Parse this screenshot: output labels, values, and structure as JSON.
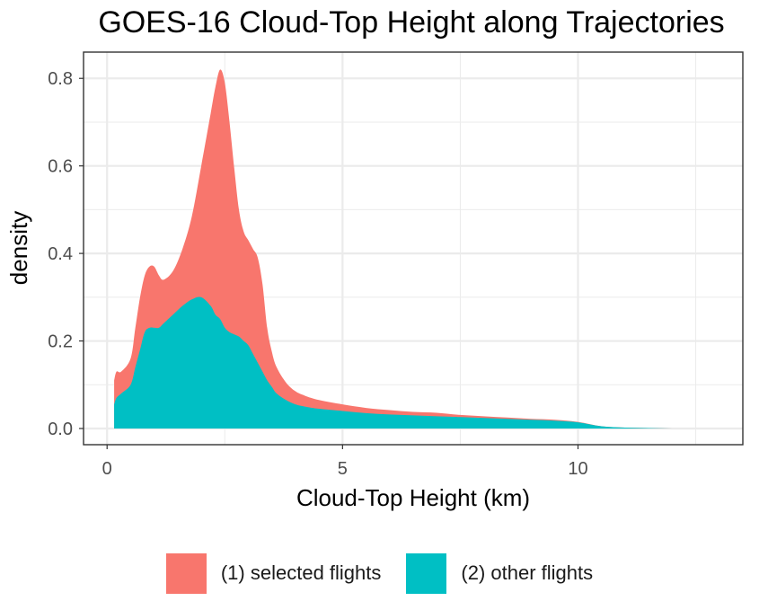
{
  "chart_data": {
    "type": "area",
    "title": "GOES-16 Cloud-Top Height along Trajectories",
    "xlabel": "Cloud-Top Height (km)",
    "ylabel": "density",
    "xlim": [
      -0.5,
      13.5
    ],
    "ylim": [
      -0.037,
      0.86
    ],
    "x_ticks": [
      0,
      5,
      10
    ],
    "x_tick_labels": [
      "0",
      "5",
      "10"
    ],
    "y_ticks": [
      0.0,
      0.2,
      0.4,
      0.6,
      0.8
    ],
    "y_tick_labels": [
      "0.0",
      "0.2",
      "0.4",
      "0.6",
      "0.8"
    ],
    "grid": true,
    "stacked": true,
    "legend_position": "bottom",
    "series": [
      {
        "name": "(1) selected flights",
        "color": "#F8766D",
        "x": [
          0.15,
          0.2,
          0.3,
          0.5,
          0.6,
          0.7,
          0.8,
          0.9,
          1.0,
          1.1,
          1.2,
          1.4,
          1.6,
          1.8,
          2.0,
          2.2,
          2.3,
          2.4,
          2.5,
          2.6,
          2.7,
          2.8,
          2.9,
          3.0,
          3.1,
          3.2,
          3.3,
          3.4,
          3.5,
          3.6,
          3.8,
          4.0,
          4.2,
          4.5,
          5.0,
          5.5,
          6.0,
          6.5,
          7.0,
          7.5,
          8.0,
          8.5,
          9.0,
          9.5,
          10.0,
          10.5,
          11.0,
          11.5,
          12.0,
          12.5
        ],
        "values": [
          0.055,
          0.06,
          0.05,
          0.06,
          0.09,
          0.12,
          0.13,
          0.14,
          0.14,
          0.12,
          0.1,
          0.1,
          0.13,
          0.19,
          0.3,
          0.44,
          0.52,
          0.57,
          0.56,
          0.48,
          0.38,
          0.29,
          0.25,
          0.24,
          0.24,
          0.24,
          0.2,
          0.12,
          0.08,
          0.06,
          0.04,
          0.03,
          0.025,
          0.02,
          0.015,
          0.012,
          0.01,
          0.008,
          0.008,
          0.005,
          0.004,
          0.003,
          0.002,
          0.002,
          0.001,
          0.0,
          0.0,
          0.0,
          0.0,
          0.0
        ]
      },
      {
        "name": "(2) other flights",
        "color": "#00BFC4",
        "x": [
          0.15,
          0.2,
          0.3,
          0.5,
          0.6,
          0.7,
          0.8,
          0.9,
          1.0,
          1.1,
          1.2,
          1.4,
          1.6,
          1.8,
          2.0,
          2.2,
          2.3,
          2.4,
          2.5,
          2.6,
          2.7,
          2.8,
          2.9,
          3.0,
          3.1,
          3.2,
          3.3,
          3.4,
          3.5,
          3.6,
          3.8,
          4.0,
          4.2,
          4.5,
          5.0,
          5.5,
          6.0,
          6.5,
          7.0,
          7.5,
          8.0,
          8.5,
          9.0,
          9.5,
          10.0,
          10.5,
          11.0,
          11.5,
          12.0,
          12.5
        ],
        "values": [
          0.055,
          0.07,
          0.08,
          0.1,
          0.14,
          0.18,
          0.22,
          0.23,
          0.23,
          0.23,
          0.24,
          0.26,
          0.28,
          0.295,
          0.3,
          0.28,
          0.26,
          0.25,
          0.23,
          0.22,
          0.215,
          0.21,
          0.2,
          0.19,
          0.17,
          0.15,
          0.13,
          0.11,
          0.095,
          0.08,
          0.065,
          0.055,
          0.05,
          0.045,
          0.04,
          0.035,
          0.032,
          0.03,
          0.028,
          0.026,
          0.024,
          0.022,
          0.02,
          0.018,
          0.014,
          0.005,
          0.002,
          0.001,
          0.0,
          0.0
        ]
      }
    ]
  }
}
